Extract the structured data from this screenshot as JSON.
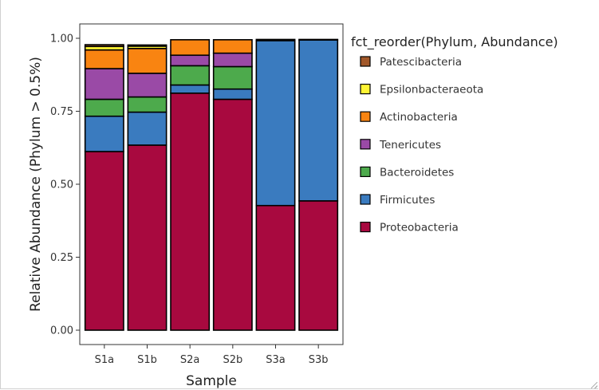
{
  "chart_data": {
    "type": "bar",
    "stacked": true,
    "title": "",
    "xlabel": "Sample",
    "ylabel": "Relative Abundance (Phylum > 0.5%)",
    "ylim": [
      0,
      1
    ],
    "yticks": [
      "0.00",
      "0.25",
      "0.50",
      "0.75",
      "1.00"
    ],
    "categories": [
      "S1a",
      "S1b",
      "S2a",
      "S2b",
      "S3a",
      "S3b"
    ],
    "legend_title": "fct_reorder(Phylum, Abundance)",
    "legend_position": "right",
    "grid": false,
    "series": [
      {
        "name": "Proteobacteria",
        "color": "#A8093F",
        "values": [
          0.612,
          0.634,
          0.812,
          0.791,
          0.427,
          0.443
        ]
      },
      {
        "name": "Firmicutes",
        "color": "#3A7BBF",
        "values": [
          0.121,
          0.113,
          0.028,
          0.035,
          0.565,
          0.551
        ]
      },
      {
        "name": "Bacteroidetes",
        "color": "#4DAA4C",
        "values": [
          0.058,
          0.052,
          0.066,
          0.077,
          0.0,
          0.0
        ]
      },
      {
        "name": "Tenericutes",
        "color": "#9A4AA6",
        "values": [
          0.105,
          0.081,
          0.036,
          0.046,
          0.0,
          0.0
        ]
      },
      {
        "name": "Actinobacteria",
        "color": "#F98411",
        "values": [
          0.064,
          0.085,
          0.053,
          0.046,
          0.0,
          0.0
        ]
      },
      {
        "name": "Epsilonbacteraeota",
        "color": "#FFF534",
        "values": [
          0.012,
          0.008,
          0.0,
          0.0,
          0.0,
          0.0
        ]
      },
      {
        "name": "Patescibacteria",
        "color": "#A2582A",
        "values": [
          0.006,
          0.004,
          0.0,
          0.0,
          0.004,
          0.002
        ]
      }
    ],
    "legend_order": [
      "Patescibacteria",
      "Epsilonbacteraeota",
      "Actinobacteria",
      "Tenericutes",
      "Bacteroidetes",
      "Firmicutes",
      "Proteobacteria"
    ]
  }
}
